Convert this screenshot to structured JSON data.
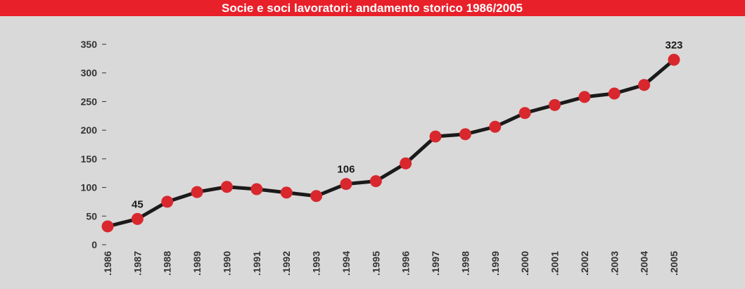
{
  "chart_data": {
    "type": "line",
    "title": "Socie e soci lavoratori: andamento storico 1986/2005",
    "categories": [
      ".1986",
      ".1987",
      ".1988",
      ".1989",
      ".1990",
      ".1991",
      ".1992",
      ".1993",
      ".1994",
      ".1995",
      ".1996",
      ".1997",
      ".1998",
      ".1999",
      ".2000",
      ".2001",
      ".2002",
      ".2003",
      ".2004",
      ".2005"
    ],
    "series": [
      {
        "color": "#d9272e",
        "values": [
          32,
          45,
          75,
          92,
          101,
          97,
          91,
          85,
          106,
          111,
          142,
          189,
          193,
          206,
          230,
          244,
          258,
          264,
          279,
          323
        ]
      }
    ],
    "value_labels": [
      null,
      "45",
      null,
      null,
      null,
      null,
      null,
      null,
      "106",
      null,
      null,
      null,
      null,
      null,
      null,
      null,
      null,
      null,
      null,
      "323"
    ],
    "ylim": [
      0,
      350
    ],
    "yticks": [
      0,
      50,
      100,
      150,
      200,
      250,
      300,
      350
    ]
  }
}
